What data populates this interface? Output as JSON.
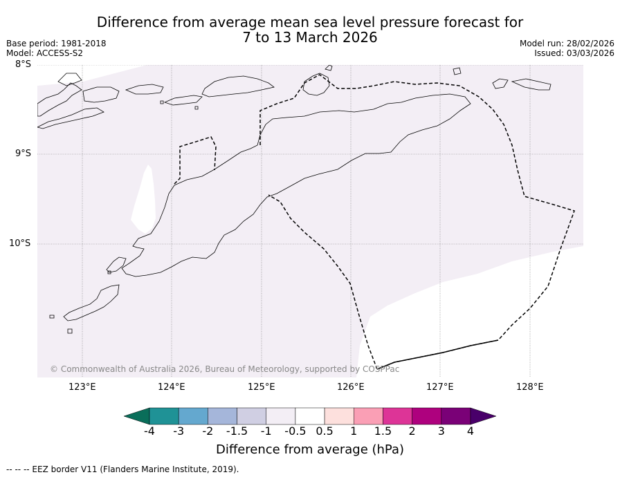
{
  "title_line1": "Difference from average mean sea level pressure forecast for",
  "title_line2": "7 to 13 March 2026",
  "base_period": "Base period: 1981-2018",
  "model": "Model: ACCESS-S2",
  "model_run": "Model run: 28/02/2026",
  "issued": "Issued: 03/03/2026",
  "copyright": "© Commonwealth of Australia 2026, Bureau of Meteorology, supported by COSPPac",
  "lat_labels": [
    "8°S",
    "9°S",
    "10°S"
  ],
  "lon_labels": [
    "123°E",
    "124°E",
    "125°E",
    "126°E",
    "127°E",
    "128°E"
  ],
  "colorbar": {
    "title": "Difference from average (hPa)",
    "ticks": [
      "-4",
      "-3",
      "-2",
      "-1.5",
      "-1",
      "-0.5",
      "0.5",
      "1",
      "1.5",
      "2",
      "3",
      "4"
    ],
    "colors": [
      "#0a6e5a",
      "#1f9296",
      "#64a8cf",
      "#a5b6da",
      "#d0cfe3",
      "#f3eef5",
      "#ffffff",
      "#fde0dd",
      "#fa9fb5",
      "#dd3497",
      "#ae017e",
      "#7a0177",
      "#49006a"
    ]
  },
  "footer": "--  --  -- EEZ border V11 (Flanders Marine Institute, 2019).",
  "field_color": "#f3eef5"
}
